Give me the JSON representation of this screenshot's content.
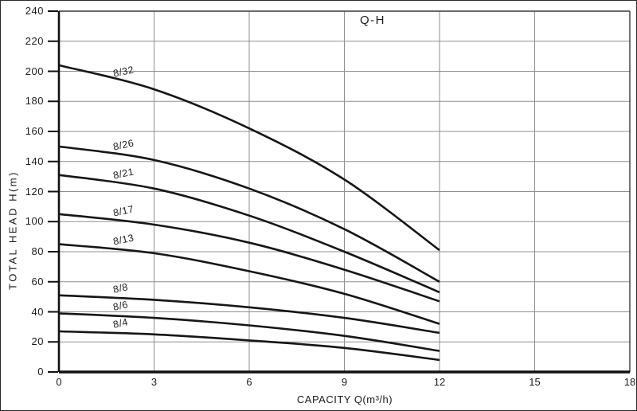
{
  "figure": {
    "title": "Q-H",
    "xlabel": "CAPACITY Q(m³/h)",
    "ylabel": "TOTAL HEAD H(m)"
  },
  "chart_data": {
    "type": "line",
    "title": "Q-H",
    "xlabel": "CAPACITY Q(m³/h)",
    "ylabel": "TOTAL HEAD H(m)",
    "x": [
      0,
      3,
      6,
      9,
      12
    ],
    "series": [
      {
        "name": "8/32",
        "values": [
          204,
          188,
          162,
          128,
          81
        ]
      },
      {
        "name": "8/26",
        "values": [
          150,
          141,
          122,
          95,
          60
        ]
      },
      {
        "name": "8/21",
        "values": [
          131,
          122,
          104,
          80,
          53
        ]
      },
      {
        "name": "8/17",
        "values": [
          105,
          98,
          86,
          68,
          47
        ]
      },
      {
        "name": "8/13",
        "values": [
          85,
          79,
          67,
          52,
          32
        ]
      },
      {
        "name": "8/8",
        "values": [
          51,
          48,
          43,
          36,
          26
        ]
      },
      {
        "name": "8/6",
        "values": [
          39,
          36,
          31,
          24,
          14
        ]
      },
      {
        "name": "8/4",
        "values": [
          27,
          25,
          21,
          16,
          8
        ]
      }
    ],
    "xlim": [
      0,
      18
    ],
    "ylim": [
      0,
      240
    ],
    "xticks": [
      0,
      3,
      6,
      9,
      12,
      15,
      18
    ],
    "yticks": [
      0,
      20,
      40,
      60,
      80,
      100,
      120,
      140,
      160,
      180,
      200,
      220,
      240
    ],
    "grid": true,
    "legend": "inline-curve-labels",
    "line_color": "#161616",
    "grid_color": "#8f8f8f",
    "frame_color": "#3a3a3a",
    "axis_color": "#111111"
  }
}
